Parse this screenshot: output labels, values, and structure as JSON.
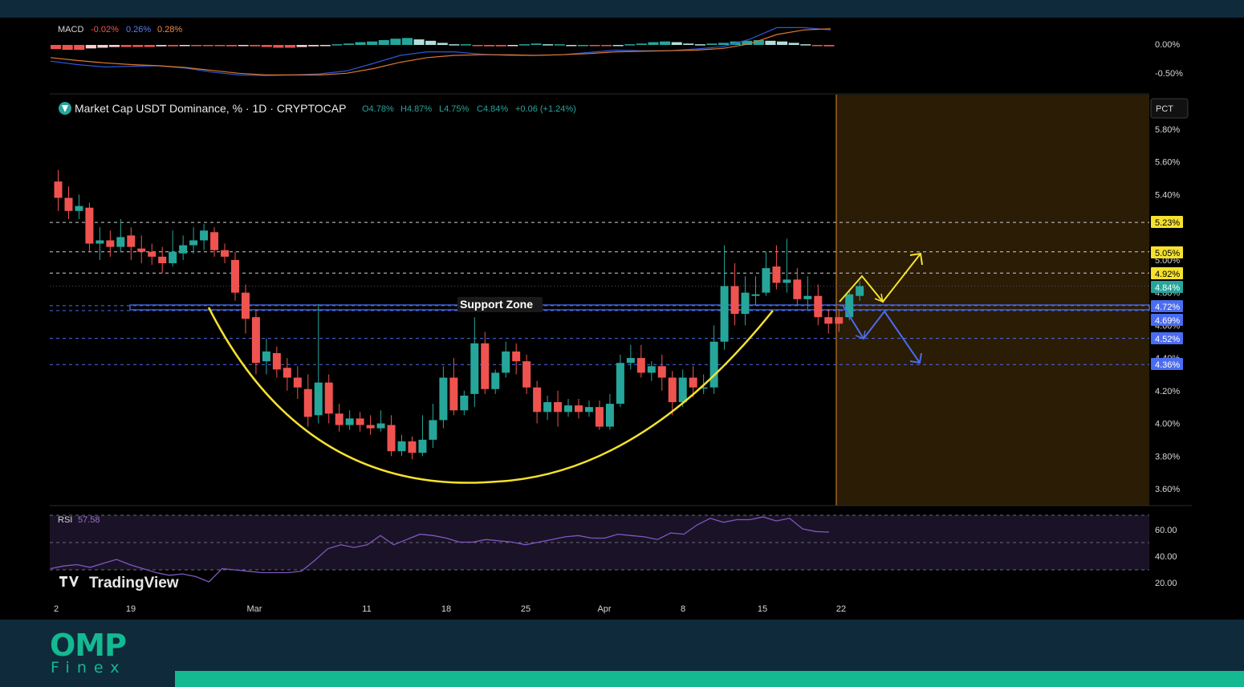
{
  "colors": {
    "up": "#26a69a",
    "down": "#ef5350",
    "yellow": "#f5e12e",
    "blue": "#4a6cf0",
    "projection_zone": "#2a1c05",
    "projection_border": "#c07a2a",
    "macd_line": "#2f56d6",
    "signal_line": "#e0782a",
    "rsi_line": "#7e57c2",
    "brand": "#14b991"
  },
  "macd": {
    "label": "MACD",
    "v1": "-0.02%",
    "v2": "0.26%",
    "v3": "0.28%",
    "axis": [
      "0.00%",
      "-0.50%"
    ]
  },
  "main": {
    "icon": "tether-logo-icon",
    "title": "Market Cap USDT Dominance, % · 1D · CRYPTOCAP",
    "o": "O4.78%",
    "h": "H4.87%",
    "l": "L4.75%",
    "c": "C4.84%",
    "chg": "+0.06 (+1.24%)",
    "scale_btn": "PCT",
    "support_label": "Support Zone"
  },
  "rsi": {
    "label": "RSI",
    "value": "57.58",
    "axis": [
      "60.00",
      "40.00",
      "20.00"
    ]
  },
  "watermark": "TradingView",
  "brand": {
    "name": "OMP",
    "sub": "Finex"
  },
  "chart_data": {
    "type": "candlestick",
    "title": "Market Cap USDT Dominance, % · 1D · CRYPTOCAP",
    "y_axis_labels": [
      "5.80%",
      "5.60%",
      "5.40%",
      "5.00%",
      "4.80%",
      "4.60%",
      "4.40%",
      "4.20%",
      "4.00%",
      "3.80%",
      "3.60%"
    ],
    "ylim": [
      3.55,
      5.9
    ],
    "x_axis_labels": [
      "2",
      "19",
      "Mar",
      "11",
      "18",
      "25",
      "Apr",
      "8",
      "15",
      "22"
    ],
    "price_tags": [
      {
        "value": "5.23%",
        "color": "yellow"
      },
      {
        "value": "5.05%",
        "color": "yellow"
      },
      {
        "value": "4.92%",
        "color": "yellow"
      },
      {
        "value": "4.84%",
        "color": "green"
      },
      {
        "value": "4.72%",
        "color": "blue"
      },
      {
        "value": "4.69%",
        "color": "blue"
      },
      {
        "value": "4.52%",
        "color": "blue"
      },
      {
        "value": "4.36%",
        "color": "blue"
      }
    ],
    "candles": [
      [
        5.48,
        5.38,
        5.55,
        5.3
      ],
      [
        5.38,
        5.3,
        5.45,
        5.25
      ],
      [
        5.3,
        5.33,
        5.4,
        5.25
      ],
      [
        5.32,
        5.1,
        5.35,
        5.05
      ],
      [
        5.1,
        5.12,
        5.2,
        5.0
      ],
      [
        5.12,
        5.08,
        5.18,
        5.02
      ],
      [
        5.08,
        5.14,
        5.25,
        5.05
      ],
      [
        5.15,
        5.08,
        5.2,
        5.0
      ],
      [
        5.07,
        5.05,
        5.15,
        4.98
      ],
      [
        5.05,
        5.02,
        5.1,
        4.97
      ],
      [
        5.02,
        4.98,
        5.08,
        4.92
      ],
      [
        4.98,
        5.05,
        5.18,
        4.96
      ],
      [
        5.04,
        5.09,
        5.15,
        5.0
      ],
      [
        5.09,
        5.12,
        5.2,
        5.04
      ],
      [
        5.12,
        5.18,
        5.22,
        5.06
      ],
      [
        5.17,
        5.06,
        5.2,
        5.02
      ],
      [
        5.06,
        5.02,
        5.1,
        4.98
      ],
      [
        5.0,
        4.8,
        5.05,
        4.75
      ],
      [
        4.8,
        4.64,
        4.85,
        4.55
      ],
      [
        4.65,
        4.37,
        4.7,
        4.3
      ],
      [
        4.38,
        4.44,
        4.52,
        4.3
      ],
      [
        4.43,
        4.33,
        4.47,
        4.28
      ],
      [
        4.34,
        4.28,
        4.4,
        4.2
      ],
      [
        4.28,
        4.22,
        4.35,
        4.15
      ],
      [
        4.21,
        4.04,
        4.3,
        3.98
      ],
      [
        4.05,
        4.25,
        4.73,
        4.0
      ],
      [
        4.25,
        4.06,
        4.3,
        4.0
      ],
      [
        4.06,
        3.99,
        4.12,
        3.95
      ],
      [
        3.99,
        4.03,
        4.08,
        3.96
      ],
      [
        4.03,
        3.99,
        4.07,
        3.95
      ],
      [
        3.99,
        3.97,
        4.05,
        3.93
      ],
      [
        3.97,
        4.0,
        4.08,
        3.95
      ],
      [
        3.99,
        3.83,
        4.05,
        3.8
      ],
      [
        3.83,
        3.89,
        3.93,
        3.8
      ],
      [
        3.89,
        3.82,
        3.92,
        3.78
      ],
      [
        3.82,
        3.9,
        4.05,
        3.8
      ],
      [
        3.9,
        4.02,
        4.12,
        3.85
      ],
      [
        4.02,
        4.28,
        4.35,
        3.97
      ],
      [
        4.28,
        4.08,
        4.4,
        4.05
      ],
      [
        4.08,
        4.17,
        4.2,
        4.05
      ],
      [
        4.18,
        4.49,
        4.65,
        4.1
      ],
      [
        4.49,
        4.21,
        4.56,
        4.18
      ],
      [
        4.21,
        4.31,
        4.33,
        4.18
      ],
      [
        4.31,
        4.44,
        4.5,
        4.28
      ],
      [
        4.44,
        4.38,
        4.49,
        4.3
      ],
      [
        4.38,
        4.22,
        4.42,
        4.18
      ],
      [
        4.22,
        4.07,
        4.26,
        4.0
      ],
      [
        4.07,
        4.13,
        4.17,
        4.02
      ],
      [
        4.13,
        4.07,
        4.2,
        3.98
      ],
      [
        4.07,
        4.11,
        4.15,
        4.04
      ],
      [
        4.11,
        4.07,
        4.15,
        4.03
      ],
      [
        4.07,
        4.1,
        4.14,
        4.04
      ],
      [
        4.1,
        3.98,
        4.14,
        3.96
      ],
      [
        3.98,
        4.12,
        4.18,
        3.96
      ],
      [
        4.12,
        4.37,
        4.42,
        4.1
      ],
      [
        4.37,
        4.4,
        4.48,
        4.33
      ],
      [
        4.4,
        4.31,
        4.48,
        4.28
      ],
      [
        4.31,
        4.35,
        4.38,
        4.26
      ],
      [
        4.35,
        4.28,
        4.42,
        4.2
      ],
      [
        4.28,
        4.13,
        4.32,
        4.05
      ],
      [
        4.13,
        4.28,
        4.33,
        4.1
      ],
      [
        4.28,
        4.22,
        4.35,
        4.16
      ],
      [
        4.22,
        4.22,
        4.3,
        4.18
      ],
      [
        4.22,
        4.5,
        4.6,
        4.18
      ],
      [
        4.5,
        4.84,
        5.09,
        4.45
      ],
      [
        4.84,
        4.67,
        4.98,
        4.6
      ],
      [
        4.67,
        4.8,
        4.9,
        4.6
      ],
      [
        4.78,
        4.79,
        4.9,
        4.72
      ],
      [
        4.8,
        4.95,
        5.05,
        4.78
      ],
      [
        4.96,
        4.86,
        5.09,
        4.82
      ],
      [
        4.86,
        4.88,
        5.13,
        4.8
      ],
      [
        4.88,
        4.76,
        4.95,
        4.72
      ],
      [
        4.76,
        4.78,
        4.9,
        4.7
      ],
      [
        4.78,
        4.65,
        4.85,
        4.6
      ],
      [
        4.65,
        4.61,
        4.7,
        4.55
      ]
    ],
    "projection_candles": [
      [
        4.65,
        4.61,
        4.7,
        4.56
      ],
      [
        4.65,
        4.79,
        4.82,
        4.63
      ],
      [
        4.78,
        4.84,
        4.87,
        4.75
      ]
    ],
    "macd_line": [
      -0.28,
      -0.34,
      -0.38,
      -0.37,
      -0.36,
      -0.4,
      -0.47,
      -0.52,
      -0.53,
      -0.52,
      -0.5,
      -0.45,
      -0.32,
      -0.18,
      -0.12,
      -0.12,
      -0.16,
      -0.18,
      -0.18,
      -0.17,
      -0.13,
      -0.09,
      -0.1,
      -0.1,
      -0.07,
      -0.03,
      0.1,
      0.3,
      0.3,
      0.26
    ],
    "signal_line": [
      -0.22,
      -0.27,
      -0.31,
      -0.34,
      -0.36,
      -0.39,
      -0.44,
      -0.49,
      -0.52,
      -0.52,
      -0.52,
      -0.49,
      -0.41,
      -0.3,
      -0.22,
      -0.18,
      -0.17,
      -0.17,
      -0.18,
      -0.17,
      -0.15,
      -0.12,
      -0.11,
      -0.1,
      -0.09,
      -0.06,
      0.02,
      0.18,
      0.26,
      0.28
    ],
    "macd_hist": [
      -0.06,
      -0.07,
      -0.07,
      -0.05,
      -0.04,
      -0.03,
      -0.03,
      -0.03,
      -0.03,
      -0.02,
      -0.02,
      -0.01,
      -0.01,
      -0.01,
      -0.01,
      -0.02,
      -0.01,
      -0.02,
      -0.03,
      -0.04,
      -0.04,
      -0.03,
      -0.02,
      -0.01,
      0.01,
      0.02,
      0.04,
      0.05,
      0.07,
      0.09,
      0.1,
      0.08,
      0.06,
      0.03,
      0.01,
      0.01,
      -0.01,
      -0.02,
      -0.02,
      -0.01,
      0.01,
      0.02,
      0.01,
      0.01,
      0.0,
      0.0,
      -0.01,
      -0.01,
      0.0,
      0.01,
      0.02,
      0.04,
      0.05,
      0.04,
      0.02,
      0.01,
      0.02,
      0.03,
      0.05,
      0.06,
      0.07,
      0.06,
      0.05,
      0.03,
      0.01,
      -0.01,
      -0.02
    ],
    "rsi_values": [
      30,
      32,
      33,
      31,
      34,
      37,
      33,
      30,
      27,
      25,
      26,
      24,
      20,
      30,
      29,
      28,
      27,
      27,
      27,
      28,
      36,
      45,
      48,
      46,
      48,
      55,
      48,
      52,
      56,
      55,
      53,
      50,
      50,
      52,
      51,
      50,
      48,
      50,
      52,
      54,
      55,
      53,
      53,
      56,
      55,
      54,
      52,
      57,
      56,
      63,
      68,
      65,
      67,
      67,
      69,
      66,
      68,
      60,
      58,
      57.58
    ],
    "annotations": [
      "Support Zone"
    ]
  }
}
